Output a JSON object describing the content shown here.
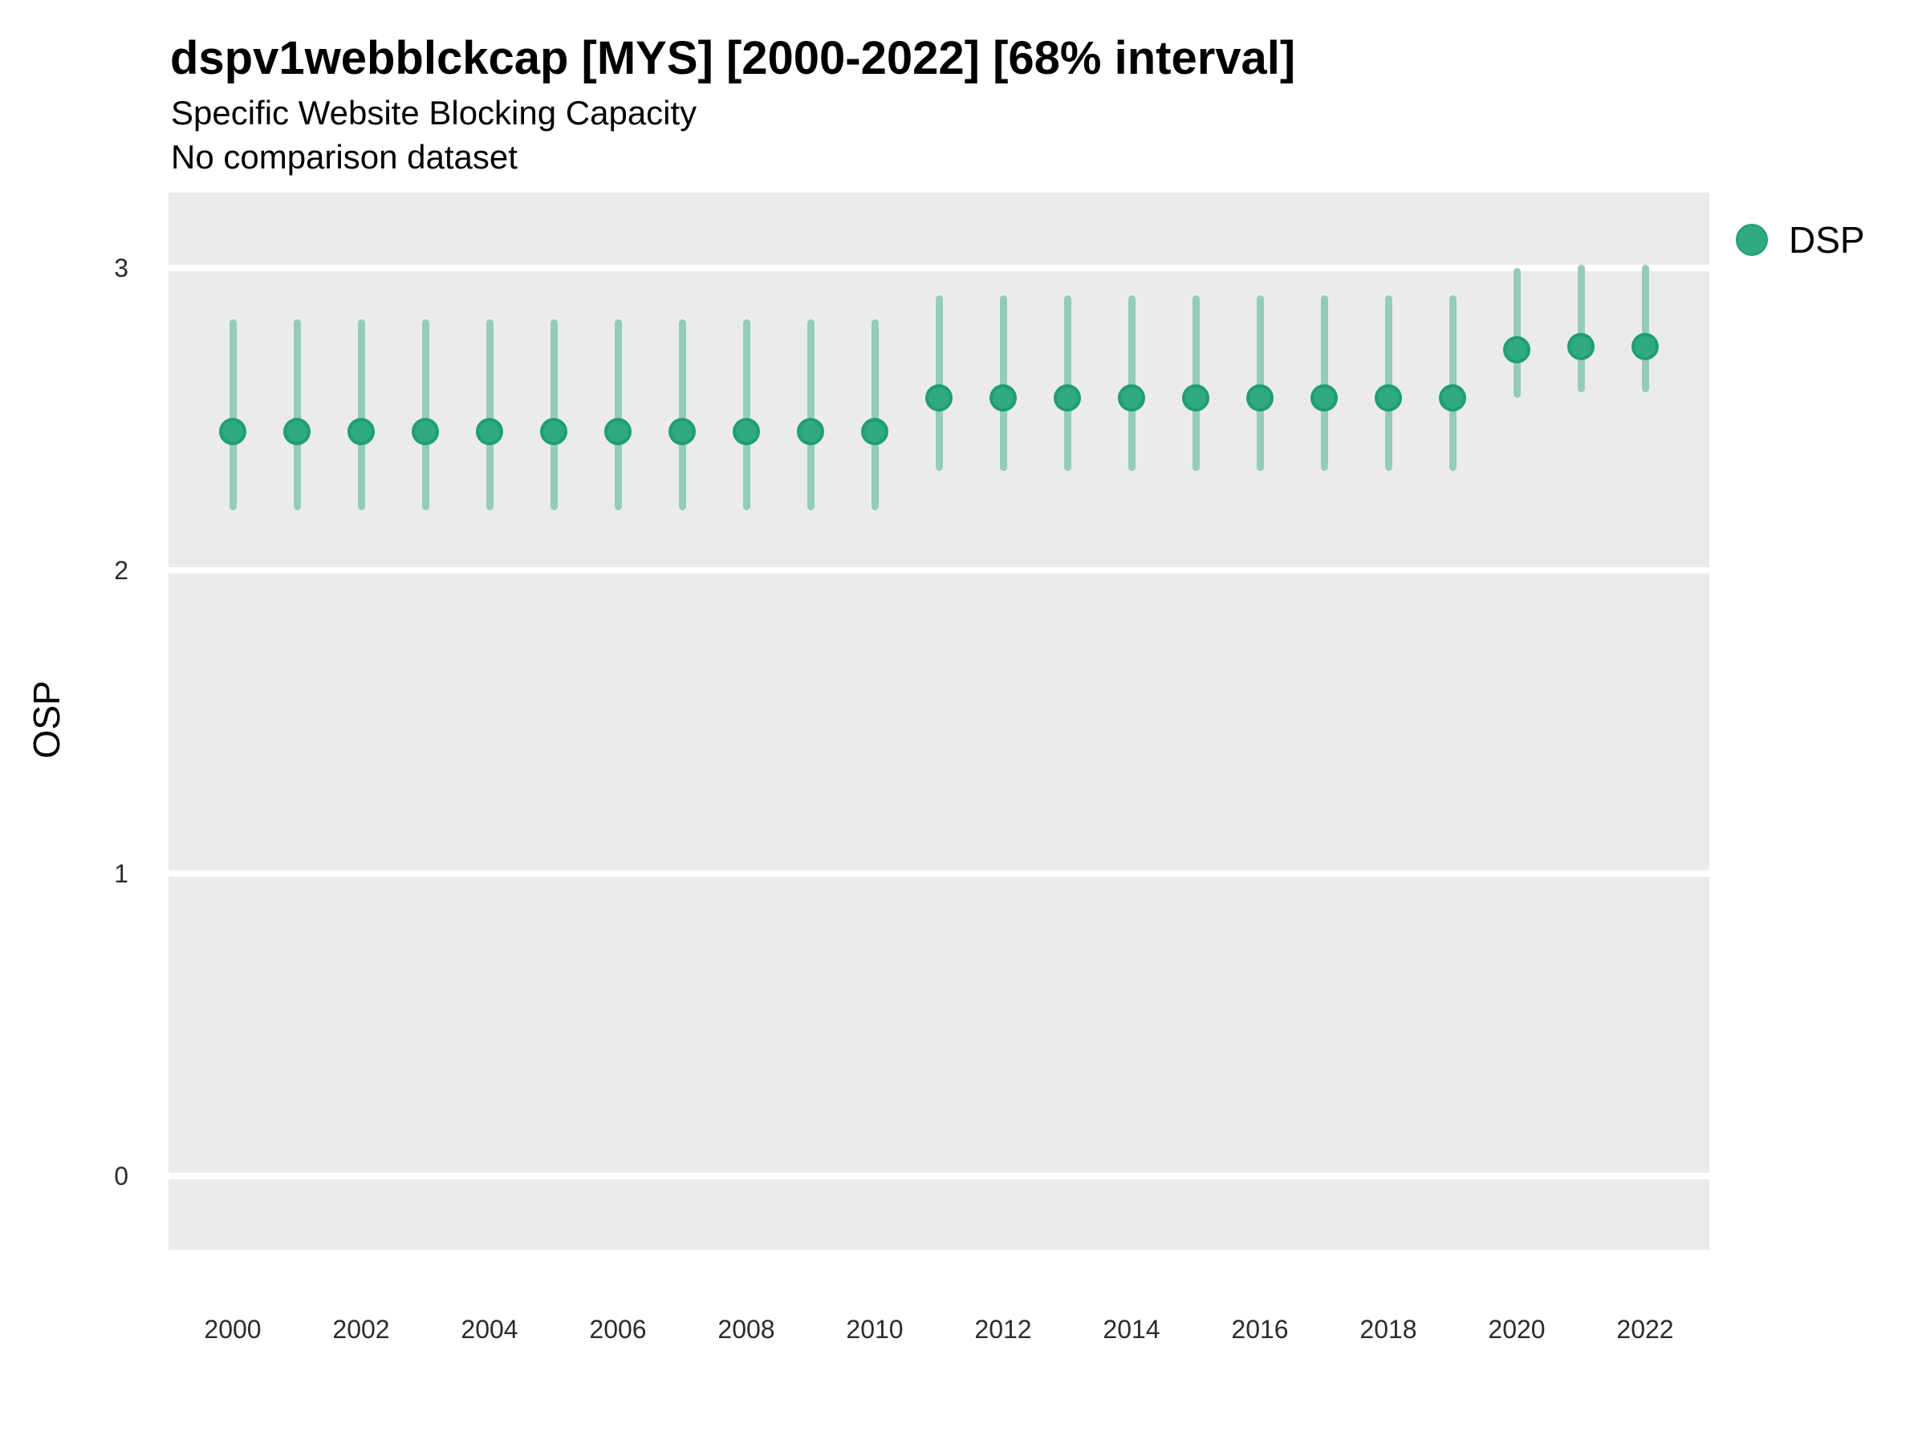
{
  "header": {
    "title": "dspv1webblckcap [MYS] [2000-2022] [68% interval]",
    "subtitle": "Specific Website Blocking Capacity",
    "note": "No comparison dataset"
  },
  "legend": {
    "label": "DSP",
    "color": "#2fa980"
  },
  "colors": {
    "panel_background": "#ebebeb",
    "gridline": "#ffffff",
    "point_fill": "#2fa980",
    "point_stroke": "#1f9e72",
    "interval_line": "#93cdba",
    "text": "#000000",
    "tick_text": "#2b2b2b"
  },
  "chart_data": {
    "type": "pointrange",
    "title": "dspv1webblckcap [MYS] [2000-2022] [68% interval]",
    "subtitle": "Specific Website Blocking Capacity",
    "note": "No comparison dataset",
    "interval": "68%",
    "xlabel": "",
    "ylabel": "OSP",
    "ylim": [
      -0.25,
      3.25
    ],
    "yticks": [
      0,
      1,
      2,
      3
    ],
    "xtick_labels": [
      2000,
      2002,
      2004,
      2006,
      2008,
      2010,
      2012,
      2014,
      2016,
      2018,
      2020,
      2022
    ],
    "grid": "major-horizontal-only",
    "legend_position": "right-top",
    "series": [
      {
        "name": "DSP",
        "points": [
          {
            "year": 2000,
            "value": 2.46,
            "lo": 2.2,
            "hi": 2.83
          },
          {
            "year": 2001,
            "value": 2.46,
            "lo": 2.2,
            "hi": 2.83
          },
          {
            "year": 2002,
            "value": 2.46,
            "lo": 2.2,
            "hi": 2.83
          },
          {
            "year": 2003,
            "value": 2.46,
            "lo": 2.2,
            "hi": 2.83
          },
          {
            "year": 2004,
            "value": 2.46,
            "lo": 2.2,
            "hi": 2.83
          },
          {
            "year": 2005,
            "value": 2.46,
            "lo": 2.2,
            "hi": 2.83
          },
          {
            "year": 2006,
            "value": 2.46,
            "lo": 2.2,
            "hi": 2.83
          },
          {
            "year": 2007,
            "value": 2.46,
            "lo": 2.2,
            "hi": 2.83
          },
          {
            "year": 2008,
            "value": 2.46,
            "lo": 2.2,
            "hi": 2.83
          },
          {
            "year": 2009,
            "value": 2.46,
            "lo": 2.2,
            "hi": 2.83
          },
          {
            "year": 2010,
            "value": 2.46,
            "lo": 2.2,
            "hi": 2.83
          },
          {
            "year": 2011,
            "value": 2.57,
            "lo": 2.33,
            "hi": 2.91
          },
          {
            "year": 2012,
            "value": 2.57,
            "lo": 2.33,
            "hi": 2.91
          },
          {
            "year": 2013,
            "value": 2.57,
            "lo": 2.33,
            "hi": 2.91
          },
          {
            "year": 2014,
            "value": 2.57,
            "lo": 2.33,
            "hi": 2.91
          },
          {
            "year": 2015,
            "value": 2.57,
            "lo": 2.33,
            "hi": 2.91
          },
          {
            "year": 2016,
            "value": 2.57,
            "lo": 2.33,
            "hi": 2.91
          },
          {
            "year": 2017,
            "value": 2.57,
            "lo": 2.33,
            "hi": 2.91
          },
          {
            "year": 2018,
            "value": 2.57,
            "lo": 2.33,
            "hi": 2.91
          },
          {
            "year": 2019,
            "value": 2.57,
            "lo": 2.33,
            "hi": 2.91
          },
          {
            "year": 2020,
            "value": 2.73,
            "lo": 2.57,
            "hi": 3.0
          },
          {
            "year": 2021,
            "value": 2.74,
            "lo": 2.59,
            "hi": 3.01
          },
          {
            "year": 2022,
            "value": 2.74,
            "lo": 2.59,
            "hi": 3.01
          }
        ]
      }
    ]
  }
}
